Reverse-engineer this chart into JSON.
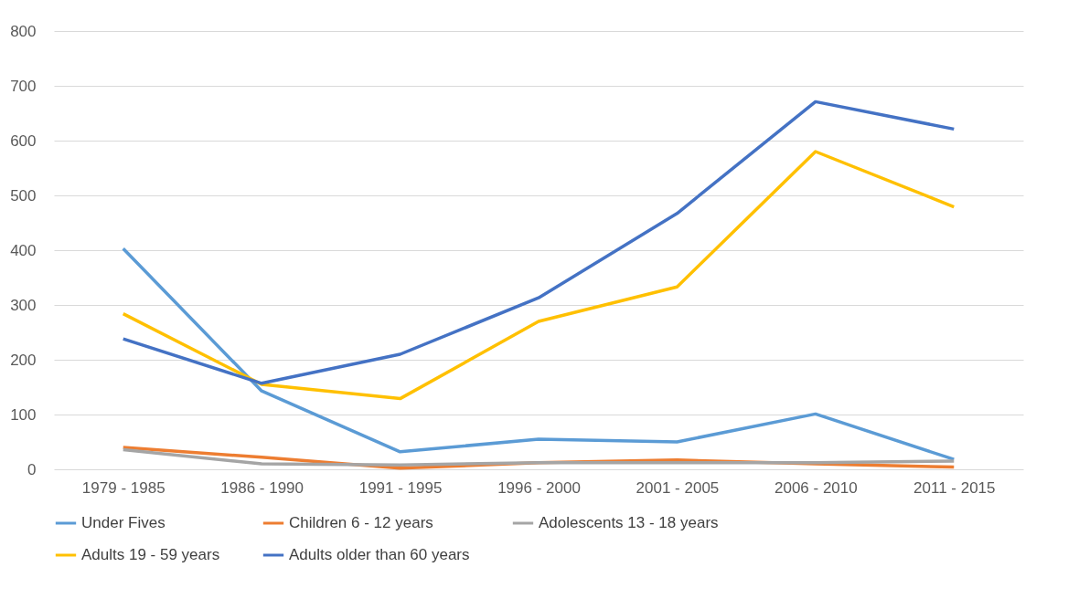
{
  "chart_data": {
    "type": "line",
    "categories": [
      "1979 - 1985",
      "1986 - 1990",
      "1991 - 1995",
      "1996 - 2000",
      "2001 - 2005",
      "2006 - 2010",
      "2011 - 2015"
    ],
    "series": [
      {
        "name": "Under Fives",
        "color": "#5b9bd5",
        "values": [
          403,
          143,
          32,
          55,
          50,
          101,
          18
        ]
      },
      {
        "name": "Children 6 - 12 years",
        "color": "#ed7d31",
        "values": [
          40,
          22,
          2,
          12,
          17,
          10,
          4
        ]
      },
      {
        "name": "Adolescents 13 - 18 years",
        "color": "#a5a5a5",
        "values": [
          36,
          10,
          8,
          12,
          12,
          12,
          15
        ]
      },
      {
        "name": "Adults 19 - 59 years",
        "color": "#ffc000",
        "values": [
          284,
          155,
          129,
          270,
          333,
          580,
          479
        ]
      },
      {
        "name": "Adults older than 60 years",
        "color": "#4472c4",
        "values": [
          238,
          157,
          210,
          313,
          467,
          671,
          621
        ]
      }
    ],
    "ylim": [
      0,
      800
    ],
    "yticks": [
      0,
      100,
      200,
      300,
      400,
      500,
      600,
      700,
      800
    ],
    "grid": "y",
    "legend": "bottom",
    "marker": "none",
    "line_style": "solid"
  }
}
